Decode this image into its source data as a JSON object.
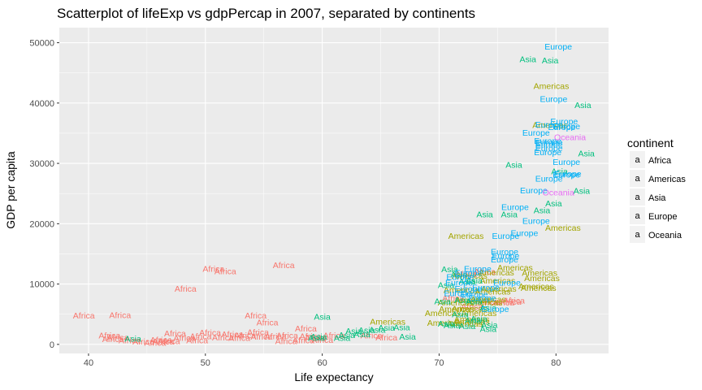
{
  "chart_data": {
    "type": "scatter",
    "title": "Scatterplot of lifeExp vs gdpPercap in 2007, separated by continents",
    "xlabel": "Life expectancy",
    "ylabel": "GDP per capita",
    "xlim": [
      37.5,
      84.5
    ],
    "ylim": [
      -1500,
      52500
    ],
    "x_ticks": [
      40,
      50,
      60,
      70,
      80
    ],
    "y_ticks": [
      0,
      10000,
      20000,
      30000,
      40000,
      50000
    ],
    "y_tick_labels": [
      "0",
      "10000",
      "20000",
      "30000",
      "40000",
      "50000"
    ],
    "point_label": "a",
    "legend": {
      "title": "continent",
      "position": "right"
    },
    "series": [
      {
        "name": "Africa",
        "color": "#F8766D",
        "points": [
          [
            39.6,
            4800
          ],
          [
            42.7,
            4900
          ],
          [
            41.8,
            1500
          ],
          [
            42.5,
            1200
          ],
          [
            42.1,
            900
          ],
          [
            43.5,
            700
          ],
          [
            44.7,
            500
          ],
          [
            45.7,
            300
          ],
          [
            46.2,
            800
          ],
          [
            46.4,
            500
          ],
          [
            46.9,
            600
          ],
          [
            47.4,
            1900
          ],
          [
            48.2,
            1100
          ],
          [
            48.3,
            9300
          ],
          [
            49.3,
            700
          ],
          [
            49.6,
            1400
          ],
          [
            50.4,
            2000
          ],
          [
            50.7,
            12600
          ],
          [
            51.5,
            1200
          ],
          [
            51.7,
            12200
          ],
          [
            52.3,
            1700
          ],
          [
            52.9,
            1100
          ],
          [
            53.4,
            1500
          ],
          [
            54.3,
            4800
          ],
          [
            54.5,
            2100
          ],
          [
            54.8,
            1300
          ],
          [
            55.3,
            3700
          ],
          [
            56.0,
            1400
          ],
          [
            56.7,
            13200
          ],
          [
            56.9,
            600
          ],
          [
            57.0,
            1500
          ],
          [
            58.4,
            700
          ],
          [
            58.6,
            2700
          ],
          [
            59.0,
            1400
          ],
          [
            59.4,
            1100
          ],
          [
            60.0,
            800
          ],
          [
            61.0,
            1500
          ],
          [
            64.2,
            1500
          ],
          [
            65.5,
            1200
          ],
          [
            72.3,
            11700
          ],
          [
            72.8,
            6300
          ],
          [
            74.2,
            7100
          ],
          [
            76.1,
            7100
          ],
          [
            76.4,
            7300
          ],
          [
            71.2,
            7700
          ],
          [
            73.9,
            12100
          ],
          [
            75.5,
            7000
          ]
        ]
      },
      {
        "name": "Americas",
        "color": "#A3A500",
        "points": [
          [
            79.6,
            42900
          ],
          [
            80.6,
            19400
          ],
          [
            72.3,
            18000
          ],
          [
            79.5,
            36400
          ],
          [
            76.5,
            12800
          ],
          [
            78.6,
            11900
          ],
          [
            78.3,
            9700
          ],
          [
            74.9,
            12000
          ],
          [
            75.0,
            10600
          ],
          [
            72.6,
            11400
          ],
          [
            75.1,
            9300
          ],
          [
            74.6,
            8800
          ],
          [
            73.9,
            7000
          ],
          [
            72.9,
            7400
          ],
          [
            71.4,
            7000
          ],
          [
            71.9,
            9100
          ],
          [
            72.6,
            6000
          ],
          [
            70.3,
            5200
          ],
          [
            71.5,
            5900
          ],
          [
            72.8,
            4200
          ],
          [
            70.5,
            3600
          ],
          [
            72.2,
            3500
          ],
          [
            72.8,
            3800
          ],
          [
            65.6,
            3800
          ],
          [
            73.4,
            5200
          ],
          [
            78.8,
            11000
          ],
          [
            74.2,
            7500
          ],
          [
            78.5,
            9400
          ]
        ]
      },
      {
        "name": "Asia",
        "color": "#00BF7D",
        "points": [
          [
            77.6,
            47300
          ],
          [
            79.5,
            47100
          ],
          [
            82.3,
            39700
          ],
          [
            82.6,
            31700
          ],
          [
            76.4,
            29800
          ],
          [
            80.3,
            28700
          ],
          [
            82.2,
            25500
          ],
          [
            78.8,
            22300
          ],
          [
            79.8,
            23400
          ],
          [
            76.0,
            21600
          ],
          [
            73.9,
            21600
          ],
          [
            70.9,
            12500
          ],
          [
            71.7,
            11600
          ],
          [
            72.4,
            10500
          ],
          [
            73.0,
            10600
          ],
          [
            70.6,
            9900
          ],
          [
            70.3,
            7200
          ],
          [
            72.0,
            7400
          ],
          [
            73.0,
            7200
          ],
          [
            74.2,
            6100
          ],
          [
            71.8,
            5000
          ],
          [
            73.4,
            4300
          ],
          [
            72.9,
            4000
          ],
          [
            74.3,
            3300
          ],
          [
            74.2,
            2600
          ],
          [
            72.4,
            3100
          ],
          [
            71.1,
            3200
          ],
          [
            70.6,
            3500
          ],
          [
            66.8,
            2900
          ],
          [
            65.5,
            2800
          ],
          [
            64.7,
            2500
          ],
          [
            63.8,
            2400
          ],
          [
            62.7,
            2300
          ],
          [
            62.1,
            1600
          ],
          [
            60.0,
            4600
          ],
          [
            59.5,
            1100
          ],
          [
            59.7,
            1300
          ],
          [
            43.8,
            1000
          ],
          [
            67.3,
            1300
          ],
          [
            61.7,
            1100
          ],
          [
            63.4,
            1700
          ]
        ]
      },
      {
        "name": "Europe",
        "color": "#00B0F6",
        "points": [
          [
            80.2,
            49400
          ],
          [
            79.8,
            40700
          ],
          [
            80.7,
            37000
          ],
          [
            79.4,
            36500
          ],
          [
            80.9,
            36200
          ],
          [
            80.5,
            36100
          ],
          [
            78.3,
            35100
          ],
          [
            79.3,
            33800
          ],
          [
            79.4,
            33500
          ],
          [
            79.4,
            33200
          ],
          [
            79.4,
            32600
          ],
          [
            79.3,
            31900
          ],
          [
            80.9,
            30300
          ],
          [
            81.0,
            28300
          ],
          [
            80.9,
            28200
          ],
          [
            79.4,
            27500
          ],
          [
            78.1,
            25600
          ],
          [
            76.5,
            22800
          ],
          [
            78.3,
            20500
          ],
          [
            75.7,
            18000
          ],
          [
            77.3,
            18500
          ],
          [
            75.6,
            15400
          ],
          [
            75.7,
            14700
          ],
          [
            75.6,
            14100
          ],
          [
            73.3,
            12600
          ],
          [
            72.5,
            11900
          ],
          [
            71.8,
            11200
          ],
          [
            71.7,
            10300
          ],
          [
            74.0,
            9500
          ],
          [
            72.5,
            9300
          ],
          [
            71.6,
            8500
          ],
          [
            73.0,
            8300
          ],
          [
            73.7,
            7700
          ],
          [
            74.8,
            5900
          ],
          [
            75.8,
            10300
          ]
        ]
      },
      {
        "name": "Oceania",
        "color": "#E76BF3",
        "points": [
          [
            81.2,
            34400
          ],
          [
            80.2,
            25200
          ]
        ]
      }
    ]
  }
}
